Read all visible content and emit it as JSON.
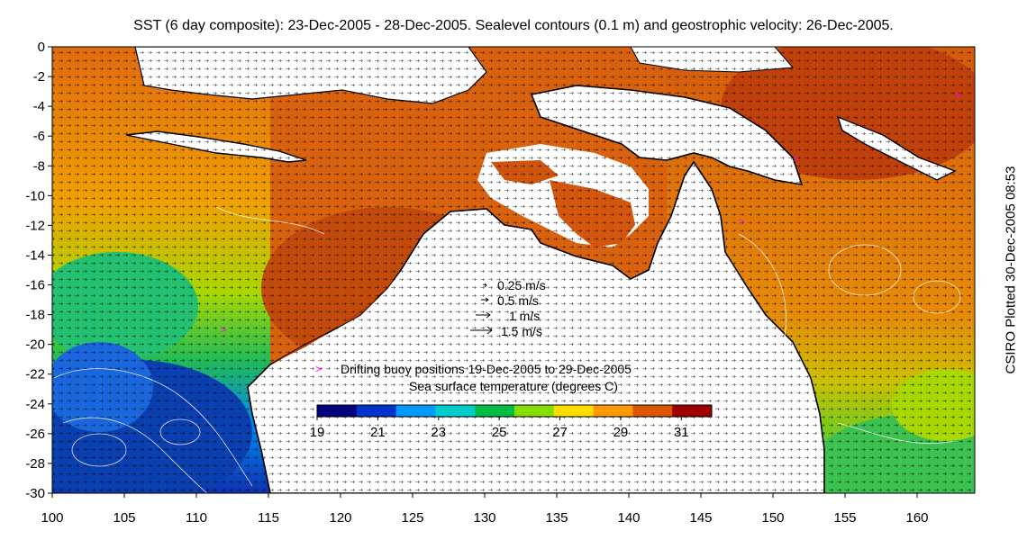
{
  "title": "SST (6 day composite): 23-Dec-2005 - 28-Dec-2005. Sealevel contours (0.1 m) and geostrophic velocity: 26-Dec-2005.",
  "credit": "CSIRO Plotted 30-Dec-2005 08:53",
  "map": {
    "lon_range": [
      100,
      164
    ],
    "lat_range": [
      -30,
      0
    ],
    "lon_ticks": [
      "100",
      "105",
      "110",
      "115",
      "120",
      "125",
      "130",
      "135",
      "140",
      "145",
      "150",
      "155",
      "160"
    ],
    "lat_ticks": [
      "0",
      "-2",
      "-4",
      "-6",
      "-8",
      "-10",
      "-12",
      "-14",
      "-16",
      "-18",
      "-20",
      "-22",
      "-24",
      "-26",
      "-28",
      "-30"
    ],
    "land_color": "#ffffff",
    "coast_color": "#000000"
  },
  "velocity_key": {
    "labels": [
      "0.25 m/s",
      "0.5 m/s",
      "1 m/s",
      "1.5 m/s"
    ]
  },
  "buoy_legend": {
    "marker": ">",
    "marker_color": "#ff00ff",
    "label": "Drifting buoy positions 19-Dec-2005 to 29-Dec-2005"
  },
  "colorbar": {
    "title": "Sea surface temperature (degrees C)",
    "range": [
      19,
      32
    ],
    "ticks": [
      "19",
      "21",
      "23",
      "25",
      "27",
      "29",
      "31"
    ],
    "colors": [
      "#00007f",
      "#0033cc",
      "#0099ff",
      "#00cccc",
      "#00bb44",
      "#88dd00",
      "#ffdd00",
      "#ff9900",
      "#dd5500",
      "#9e0000"
    ]
  }
}
